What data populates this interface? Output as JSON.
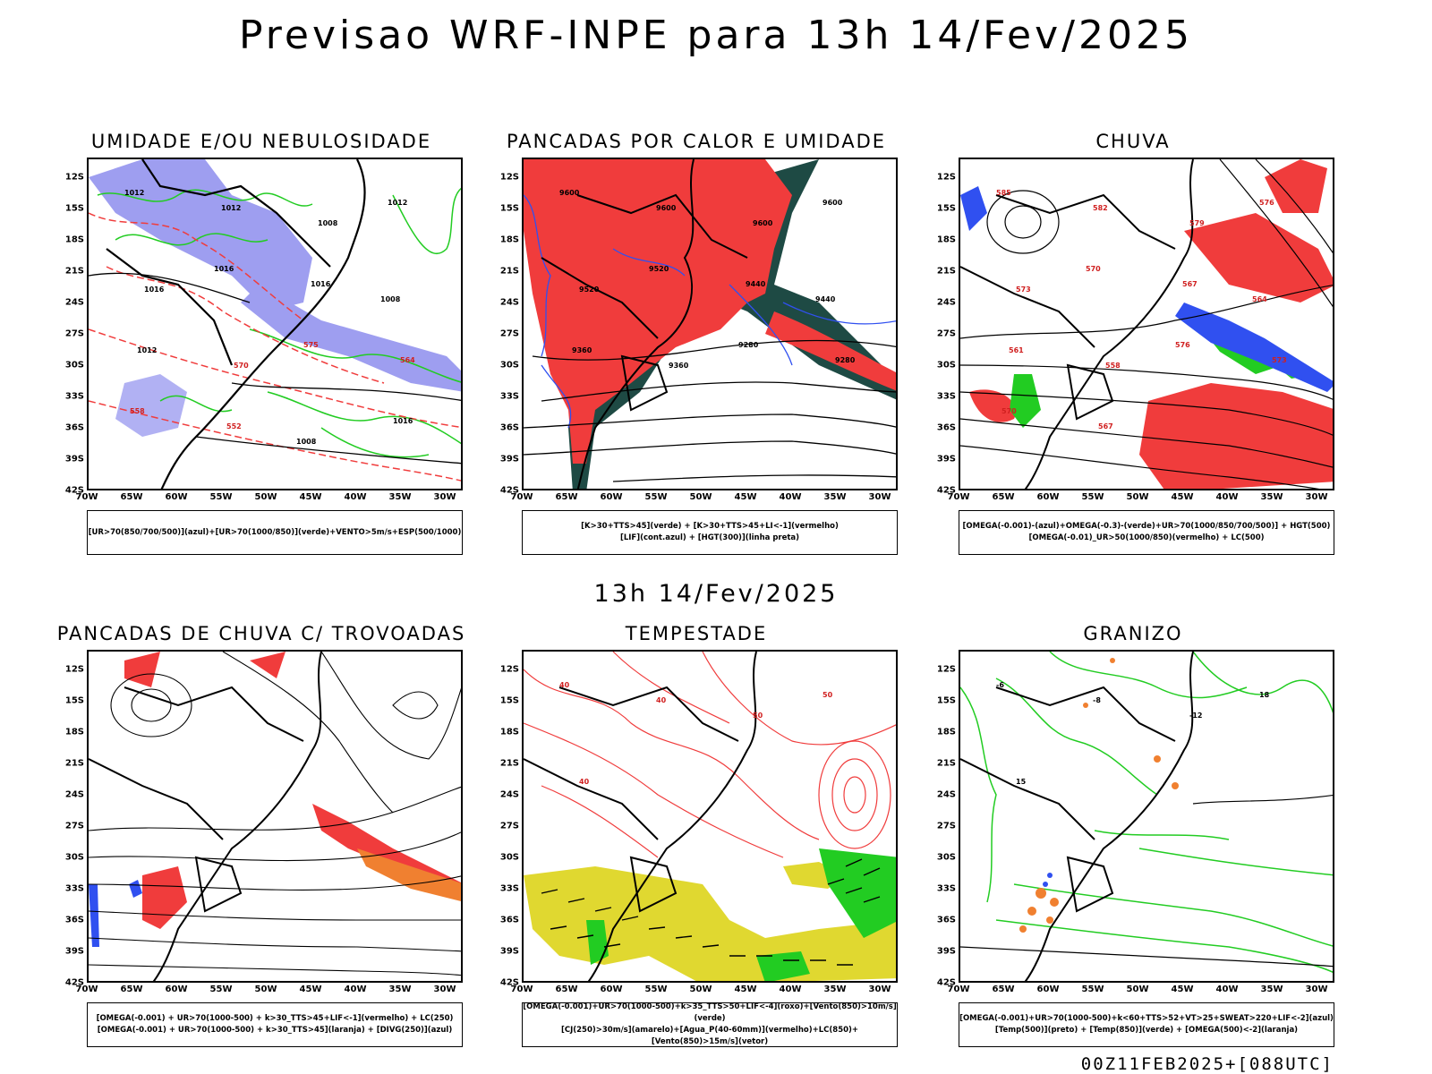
{
  "header": {
    "title": "Previsao WRF-INPE  para 13h 14/Fev/2025",
    "mid_time": "13h 14/Fev/2025",
    "footer": "00Z11FEB2025+[088UTC]"
  },
  "axes": {
    "lat_labels": [
      "12S",
      "15S",
      "18S",
      "21S",
      "24S",
      "27S",
      "30S",
      "33S",
      "36S",
      "39S",
      "42S"
    ],
    "lon_labels": [
      "70W",
      "65W",
      "60W",
      "55W",
      "50W",
      "45W",
      "40W",
      "35W",
      "30W"
    ]
  },
  "panels": [
    {
      "title": "UMIDADE E/OU NEBULOSIDADE",
      "legend": [
        "[UR>70(850/700/500)](azul)+[UR>70(1000/850)](verde)+VENTO>5m/s+ESP(500/1000)"
      ],
      "contour_labels": [
        "1012",
        "1012",
        "1008",
        "1012",
        "1016",
        "1016",
        "1016",
        "1008",
        "1012",
        "570",
        "575",
        "564",
        "558",
        "552",
        "1008",
        "1016"
      ]
    },
    {
      "title": "PANCADAS POR CALOR E UMIDADE",
      "legend": [
        "[K>30+TTS>45](verde) + [K>30+TTS>45+LI<-1](vermelho)",
        "[LIF](cont.azul) + [HGT(300)](linha preta)"
      ],
      "contour_labels": [
        "9600",
        "9600",
        "9600",
        "9600",
        "9520",
        "9520",
        "9440",
        "9440",
        "9360",
        "9360",
        "9280",
        "9280"
      ]
    },
    {
      "title": "CHUVA",
      "legend": [
        "[OMEGA(-0.001)-(azul)+OMEGA(-0.3)-(verde)+UR>70(1000/850/700/500)] + HGT(500)",
        "[OMEGA(-0.01)_UR>50(1000/850)(vermelho) + LC(500)"
      ],
      "contour_labels": [
        "585",
        "582",
        "579",
        "576",
        "573",
        "570",
        "567",
        "564",
        "561",
        "558",
        "576",
        "573",
        "570",
        "567"
      ]
    },
    {
      "title": "PANCADAS DE CHUVA C/ TROVOADAS",
      "legend": [
        "[OMEGA(-0.001) + UR>70(1000-500) + k>30_TTS>45+LIF<-1](vermelho) + LC(250)",
        "[OMEGA(-0.001) + UR>70(1000-500) + k>30_TTS>45](laranja) + [DIVG(250)](azul)"
      ],
      "contour_labels": []
    },
    {
      "title": "TEMPESTADE",
      "legend": [
        "[OMEGA(-0.001)+UR>70(1000-500)+k>35_TTS>50+LIF<-4](roxo)+[Vento(850)>10m/s](verde)",
        "[CJ(250)>30m/s](amarelo)+[Agua_P(40-60mm)](vermelho)+LC(850)+[Vento(850)>15m/s](vetor)"
      ],
      "contour_labels": [
        "40",
        "40",
        "50",
        "50",
        "40"
      ]
    },
    {
      "title": "GRANIZO",
      "legend": [
        "[OMEGA(-0.001)+UR>70(1000-500)+k<60+TTS>52+VT>25+SWEAT>220+LIF<-2](azul)",
        "[Temp(500)](preto) + [Temp(850)](verde) + [OMEGA(500)<-2](laranja)"
      ],
      "contour_labels": [
        "-6",
        "-8",
        "-12",
        "18",
        "15"
      ]
    }
  ],
  "colors": {
    "blue_humidity": "#9e9ef0",
    "green": "#22cc22",
    "red": "#f03c3c",
    "blue": "#3050f0",
    "dark_teal": "#1e4a44",
    "yellow": "#e0d830",
    "orange": "#f08030",
    "purple": "#a020c0"
  }
}
